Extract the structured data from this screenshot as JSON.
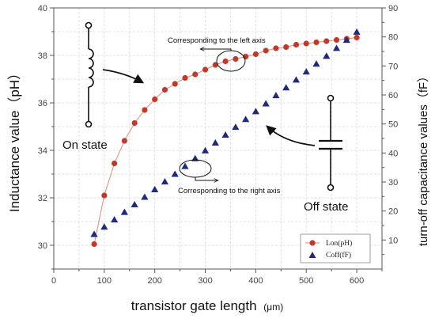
{
  "chart_data": {
    "type": "scatter",
    "xlabel": "transistor gate length",
    "xlabel_unit": "(μm)",
    "ylabel_left": "Inductance value（pH）",
    "ylabel_right": "turn-off capacitance values（fF）",
    "xlim": [
      0,
      650
    ],
    "ylim_left": [
      29,
      40
    ],
    "ylim_right": [
      0,
      90
    ],
    "x_ticks": [
      "0",
      "100",
      "200",
      "300",
      "400",
      "500",
      "600"
    ],
    "y_left_ticks": [
      "30",
      "32",
      "34",
      "36",
      "38",
      "40"
    ],
    "y_right_ticks": [
      "10",
      "20",
      "30",
      "40",
      "50",
      "60",
      "70",
      "80",
      "90"
    ],
    "grid": true,
    "legend_position": "bottom-right",
    "series": [
      {
        "name": "Lon(pH)",
        "axis": "left",
        "marker": "circle",
        "color": "#c0392b",
        "x": [
          80,
          100,
          120,
          140,
          160,
          180,
          200,
          220,
          240,
          260,
          280,
          300,
          320,
          340,
          360,
          380,
          400,
          420,
          440,
          460,
          480,
          500,
          520,
          540,
          560,
          580,
          600
        ],
        "y": [
          30.05,
          32.1,
          33.45,
          34.4,
          35.15,
          35.7,
          36.15,
          36.55,
          36.8,
          37.05,
          37.2,
          37.4,
          37.6,
          37.75,
          37.85,
          37.95,
          38.05,
          38.2,
          38.3,
          38.35,
          38.45,
          38.5,
          38.55,
          38.6,
          38.65,
          38.7,
          38.75
        ]
      },
      {
        "name": "Coff(fF)",
        "axis": "right",
        "marker": "triangle",
        "color": "#1f2a7a",
        "x": [
          80,
          100,
          120,
          140,
          160,
          180,
          200,
          220,
          240,
          260,
          280,
          300,
          320,
          340,
          360,
          380,
          400,
          420,
          440,
          460,
          480,
          500,
          520,
          540,
          560,
          580,
          600
        ],
        "y": [
          12,
          14.5,
          17,
          19.6,
          22.2,
          24.8,
          27.4,
          30.1,
          32.7,
          35.4,
          38.1,
          40.8,
          43.5,
          46.2,
          48.9,
          51.6,
          54.3,
          57,
          59.8,
          62.5,
          65.2,
          68,
          70.7,
          73.4,
          76.1,
          78.9,
          81.7
        ]
      }
    ],
    "annotations": {
      "left_axis": "Corresponding to the left axis",
      "right_axis": "Corresponding to the right axis",
      "on_state": "On state",
      "off_state": "Off state"
    }
  }
}
